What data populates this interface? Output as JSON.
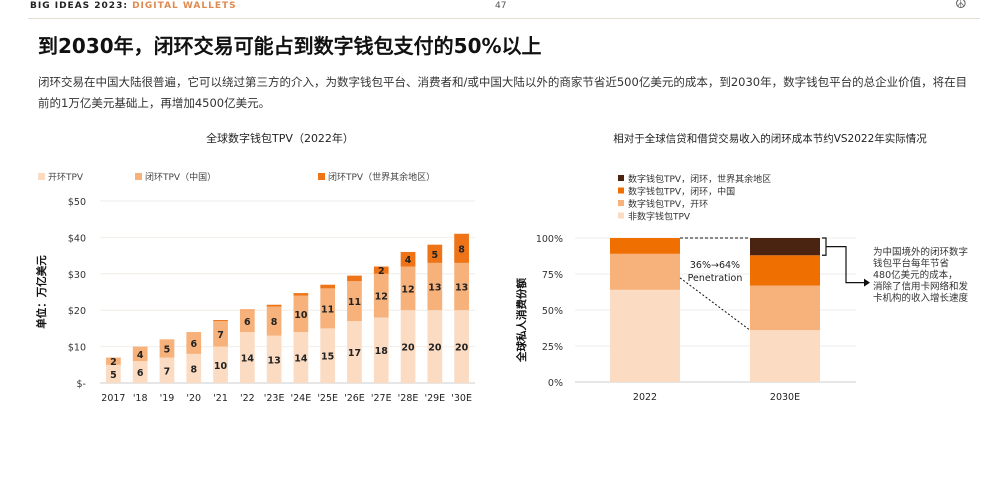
{
  "header": {
    "series_label": "BIG IDEAS 2023:",
    "series_topic": "DIGITAL WALLETS",
    "page_number": "47",
    "logo_icon": "peace-logo-icon"
  },
  "title": "到2030年，闭环交易可能占到数字钱包支付的50%以上",
  "subtitle": "闭环交易在中国大陆很普遍，它可以绕过第三方的介入，为数字钱包平台、消费者和/或中国大陆以外的商家节省近500亿美元的成本，到2030年，数字钱包平台的总企业价值，将在目前的1万亿美元基础上，再增加4500亿美元。",
  "chart_data": [
    {
      "type": "bar",
      "stacked": true,
      "title": "全球数字钱包TPV（2022年）",
      "ylabel": "单位：万亿美元",
      "xlabel": "",
      "ylim": [
        0,
        50
      ],
      "yticks": [
        "$-",
        "$10",
        "$20",
        "$30",
        "$40",
        "$50"
      ],
      "grid": true,
      "legend_position": "top",
      "categories": [
        "2017",
        "'18",
        "'19",
        "'20",
        "'21",
        "'22",
        "'23E",
        "'24E",
        "'25E",
        "'26E",
        "'27E",
        "'28E",
        "'29E",
        "'30E"
      ],
      "series": [
        {
          "name": "开环TPV",
          "color": "#fbdcc3",
          "values": [
            5,
            6,
            7,
            8,
            10,
            14,
            13,
            14,
            15,
            17,
            18,
            20,
            20,
            20
          ]
        },
        {
          "name": "闭环TPV（中国）",
          "color": "#f7b27b",
          "values": [
            2,
            4,
            5,
            6,
            7,
            6,
            8,
            10,
            11,
            11,
            12,
            12,
            13,
            13
          ]
        },
        {
          "name": "闭环TPV（世界其余地区）",
          "color": "#ef7417",
          "values": [
            0,
            0,
            0,
            0,
            0.3,
            0.2,
            0.5,
            0.7,
            1,
            1.5,
            2,
            4,
            5,
            8
          ]
        }
      ]
    },
    {
      "type": "bar",
      "stacked": true,
      "title": "相对于全球信贷和借贷交易收入的闭环成本节约VS2022年实际情况",
      "ylabel": "全球私人消费份额",
      "xlabel": "",
      "ylim": [
        0,
        100
      ],
      "yticks": [
        "0%",
        "25%",
        "50%",
        "75%",
        "100%"
      ],
      "grid": true,
      "legend_position": "top",
      "categories": [
        "2022",
        "2030E"
      ],
      "series": [
        {
          "name": "非数字钱包TPV",
          "color": "#fbdcc3",
          "values": [
            64,
            36
          ]
        },
        {
          "name": "数字钱包TPV，开环",
          "color": "#f7b27b",
          "values": [
            25,
            31
          ]
        },
        {
          "name": "数字钱包TPV，闭环，中国",
          "color": "#ef7000",
          "values": [
            11,
            21
          ]
        },
        {
          "name": "数字钱包TPV，闭环，世界其余地区",
          "color": "#4a2410",
          "values": [
            0,
            12
          ]
        }
      ],
      "annotations": {
        "penetration": [
          "36%→64%",
          "Penetration"
        ],
        "callout": [
          "为中国境外的闭环数字",
          "钱包平台每年节省",
          "480亿美元的成本，",
          "消除了信用卡网络和发",
          "卡机构的收入增长速度"
        ]
      }
    }
  ]
}
